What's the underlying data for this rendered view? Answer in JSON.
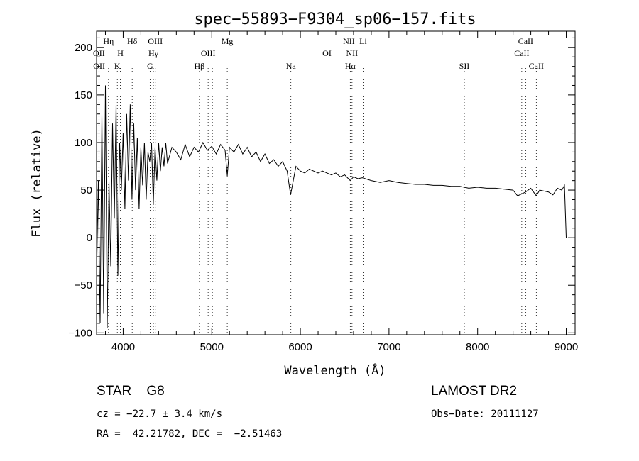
{
  "chart_data": {
    "type": "line",
    "title": "spec−55893−F9304_sp06−157.fits",
    "xlabel": "Wavelength (Å)",
    "ylabel": "Flux (relative)",
    "xlim": [
      3700,
      9100
    ],
    "ylim": [
      -102,
      217
    ],
    "xticks": [
      4000,
      5000,
      6000,
      7000,
      8000,
      9000
    ],
    "yticks": [
      -100,
      -50,
      0,
      50,
      100,
      150,
      200
    ],
    "yticklabels": [
      "−100",
      "−50",
      "0",
      "50",
      "100",
      "150",
      "200"
    ],
    "grid": false,
    "series": [
      {
        "color": "#000000",
        "x": [
          3700,
          3720,
          3740,
          3760,
          3780,
          3800,
          3820,
          3840,
          3860,
          3880,
          3900,
          3920,
          3940,
          3960,
          3980,
          4000,
          4020,
          4040,
          4060,
          4080,
          4100,
          4120,
          4140,
          4160,
          4180,
          4200,
          4220,
          4240,
          4260,
          4280,
          4300,
          4320,
          4340,
          4360,
          4380,
          4400,
          4420,
          4440,
          4460,
          4480,
          4500,
          4550,
          4600,
          4650,
          4700,
          4750,
          4800,
          4850,
          4900,
          4950,
          5000,
          5050,
          5100,
          5150,
          5175,
          5200,
          5250,
          5300,
          5350,
          5400,
          5450,
          5500,
          5550,
          5600,
          5650,
          5700,
          5750,
          5800,
          5850,
          5890,
          5950,
          6000,
          6050,
          6100,
          6150,
          6200,
          6250,
          6300,
          6350,
          6400,
          6450,
          6500,
          6563,
          6600,
          6650,
          6700,
          6800,
          6900,
          7000,
          7100,
          7200,
          7300,
          7400,
          7500,
          7600,
          7700,
          7800,
          7900,
          8000,
          8100,
          8200,
          8300,
          8400,
          8450,
          8498,
          8542,
          8600,
          8662,
          8700,
          8800,
          8850,
          8900,
          8950,
          8980,
          9000
        ],
        "y": [
          -40,
          60,
          -90,
          130,
          -80,
          160,
          -95,
          60,
          -30,
          120,
          20,
          140,
          -40,
          100,
          50,
          110,
          30,
          130,
          60,
          140,
          40,
          120,
          50,
          105,
          30,
          95,
          55,
          100,
          40,
          90,
          80,
          100,
          35,
          95,
          60,
          100,
          70,
          95,
          75,
          100,
          78,
          95,
          90,
          82,
          98,
          85,
          95,
          90,
          100,
          92,
          96,
          88,
          98,
          92,
          65,
          95,
          90,
          98,
          88,
          95,
          85,
          90,
          80,
          88,
          78,
          82,
          75,
          80,
          70,
          45,
          75,
          70,
          68,
          72,
          70,
          68,
          70,
          68,
          66,
          68,
          64,
          66,
          60,
          64,
          62,
          63,
          60,
          58,
          60,
          58,
          57,
          56,
          56,
          55,
          55,
          54,
          54,
          52,
          53,
          52,
          52,
          51,
          50,
          44,
          46,
          48,
          52,
          44,
          50,
          48,
          45,
          52,
          50,
          55,
          0
        ]
      }
    ],
    "line_markers": [
      {
        "x": 3727,
        "label": "OII",
        "row": 1
      },
      {
        "x": 3729,
        "label": "OII",
        "row": 2
      },
      {
        "x": 3835,
        "label": "Hη",
        "row": 0
      },
      {
        "x": 3934,
        "label": "K",
        "row": 2
      },
      {
        "x": 3969,
        "label": "H",
        "row": 1
      },
      {
        "x": 4102,
        "label": "Hδ",
        "row": 0
      },
      {
        "x": 4304,
        "label": "G",
        "row": 2
      },
      {
        "x": 4341,
        "label": "Hγ",
        "row": 1
      },
      {
        "x": 4363,
        "label": "OIII",
        "row": 0
      },
      {
        "x": 4861,
        "label": "Hβ",
        "row": 2
      },
      {
        "x": 4959,
        "label": "OIII",
        "row": 1
      },
      {
        "x": 5007,
        "label": "",
        "row": 1
      },
      {
        "x": 5175,
        "label": "Mg",
        "row": 0
      },
      {
        "x": 5893,
        "label": "Na",
        "row": 2
      },
      {
        "x": 6300,
        "label": "OI",
        "row": 1
      },
      {
        "x": 6548,
        "label": "NII",
        "row": 0
      },
      {
        "x": 6563,
        "label": "Hα",
        "row": 2
      },
      {
        "x": 6583,
        "label": "NII",
        "row": 1
      },
      {
        "x": 6708,
        "label": "Li",
        "row": 0
      },
      {
        "x": 7850,
        "label": "SII",
        "row": 2
      },
      {
        "x": 8498,
        "label": "CaII",
        "row": 1
      },
      {
        "x": 8542,
        "label": "CaII",
        "row": 0
      },
      {
        "x": 8662,
        "label": "CaII",
        "row": 2
      }
    ]
  },
  "info": {
    "class": "STAR    G8",
    "survey": "LAMOST DR2",
    "redshift": "cz = −22.7 ± 3.4 km/s",
    "obs_date": "Obs−Date: 20111127",
    "coords": "RA =  42.21782, DEC =  −2.51463"
  }
}
